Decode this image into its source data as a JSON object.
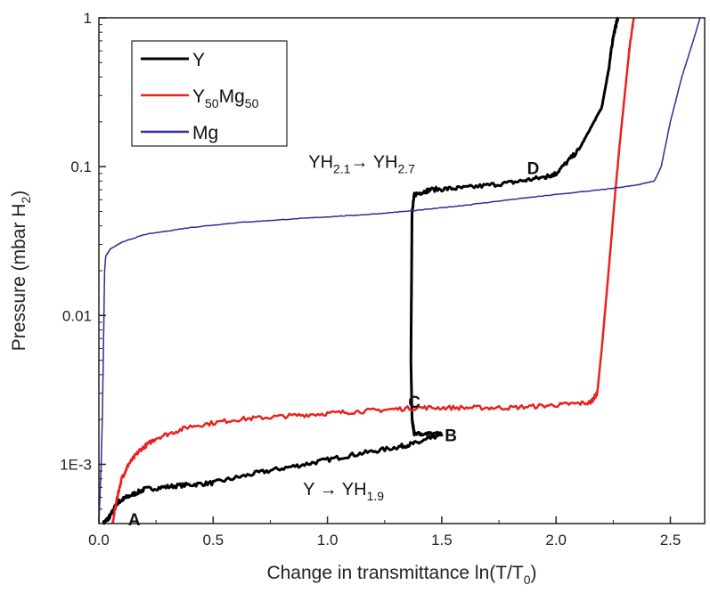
{
  "chart_data": {
    "type": "line",
    "xlabel_main": "Change in transmittance ln(T/T",
    "xlabel_sub": "0",
    "xlabel_close": ")",
    "ylabel_main": "Pressure (mbar H",
    "ylabel_sub": "2",
    "ylabel_close": ")",
    "xlim": [
      0.0,
      2.65
    ],
    "ylim": [
      0.0004,
      1
    ],
    "yscale": "log",
    "x_ticks": [
      0.0,
      0.5,
      1.0,
      1.5,
      2.0,
      2.5
    ],
    "x_tick_labels": [
      "0.0",
      "0.5",
      "1.0",
      "1.5",
      "2.0",
      "2.5"
    ],
    "y_ticks": [
      0.001,
      0.01,
      0.1,
      1
    ],
    "y_tick_labels": [
      "1E-3",
      "0.01",
      "0.1",
      "1"
    ],
    "legend_position": "top-left",
    "legend": [
      {
        "color": "#000000",
        "label_main": "Y",
        "sub1": "",
        "mid": "",
        "sub2": ""
      },
      {
        "color": "#e8231e",
        "label_main": "Y",
        "sub1": "50",
        "mid": "Mg",
        "sub2": "50"
      },
      {
        "color": "#2f2d9a",
        "label_main": "Mg",
        "sub1": "",
        "mid": "",
        "sub2": ""
      }
    ],
    "series": [
      {
        "name": "Y",
        "color": "#000000",
        "width": 3,
        "x": [
          0.02,
          0.05,
          0.08,
          0.12,
          0.2,
          0.35,
          0.5,
          0.7,
          0.9,
          1.1,
          1.3,
          1.4,
          1.5,
          1.38,
          1.37,
          1.365,
          1.37,
          1.38,
          1.45,
          1.6,
          1.8,
          1.95,
          2.0,
          2.1,
          2.2,
          2.23,
          2.25,
          2.27
        ],
        "y": [
          0.0004,
          0.00045,
          0.00055,
          0.0006,
          0.00068,
          0.00072,
          0.00075,
          0.00088,
          0.001,
          0.00115,
          0.0013,
          0.0014,
          0.0016,
          0.0016,
          0.002,
          0.005,
          0.05,
          0.065,
          0.07,
          0.072,
          0.078,
          0.085,
          0.09,
          0.13,
          0.25,
          0.45,
          0.75,
          1.0
        ]
      },
      {
        "name": "Y50Mg50",
        "color": "#e8231e",
        "width": 2.5,
        "x": [
          0.06,
          0.08,
          0.1,
          0.13,
          0.18,
          0.25,
          0.4,
          0.6,
          0.8,
          1.0,
          1.2,
          1.4,
          1.6,
          1.8,
          2.0,
          2.15,
          2.18,
          2.2,
          2.23,
          2.26,
          2.28,
          2.3,
          2.32,
          2.34
        ],
        "y": [
          0.0004,
          0.0006,
          0.0008,
          0.001,
          0.00125,
          0.0015,
          0.0018,
          0.002,
          0.0021,
          0.0022,
          0.0023,
          0.0024,
          0.0024,
          0.0024,
          0.0025,
          0.0026,
          0.003,
          0.006,
          0.02,
          0.07,
          0.15,
          0.3,
          0.6,
          1.0
        ]
      },
      {
        "name": "Mg",
        "color": "#2f2d9a",
        "width": 1.5,
        "x": [
          0.0,
          0.01,
          0.015,
          0.02,
          0.025,
          0.03,
          0.05,
          0.1,
          0.2,
          0.4,
          0.6,
          0.8,
          1.0,
          1.2,
          1.4,
          1.6,
          1.8,
          2.0,
          2.2,
          2.35,
          2.43,
          2.46,
          2.5,
          2.55,
          2.6,
          2.63
        ],
        "y": [
          0.0004,
          0.001,
          0.002,
          0.006,
          0.02,
          0.025,
          0.028,
          0.031,
          0.035,
          0.039,
          0.042,
          0.044,
          0.046,
          0.048,
          0.051,
          0.055,
          0.06,
          0.065,
          0.07,
          0.075,
          0.08,
          0.1,
          0.2,
          0.4,
          0.7,
          1.0
        ]
      }
    ],
    "annotations": [
      {
        "kind": "letter",
        "text": "A",
        "x": 0.155,
        "y": 0.00039
      },
      {
        "kind": "letter",
        "text": "B",
        "x": 1.54,
        "y": 0.00143
      },
      {
        "kind": "letter",
        "text": "C",
        "x": 1.38,
        "y": 0.0024
      },
      {
        "kind": "letter",
        "text": "D",
        "x": 1.9,
        "y": 0.089
      }
    ],
    "reaction_labels": [
      {
        "x": 1.07,
        "y": 0.00062,
        "base1": "Y ",
        "arrow": "→",
        "base2": " YH",
        "sub2": "1.9",
        "base1_sub": ""
      },
      {
        "x": 1.15,
        "y": 0.098,
        "base1": "YH",
        "base1_sub": "2.1",
        "arrow": "→",
        "base2": " YH",
        "sub2": "2.7"
      }
    ]
  }
}
